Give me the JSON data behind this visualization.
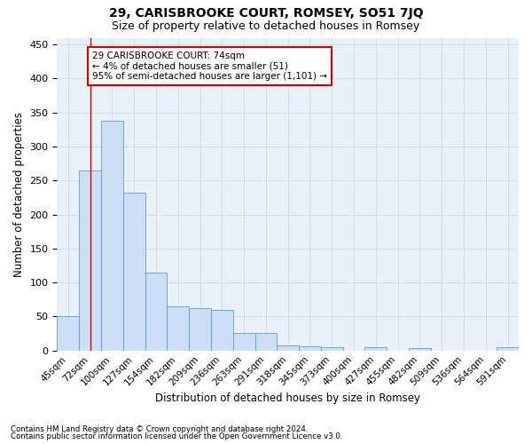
{
  "title": "29, CARISBROOKE COURT, ROMSEY, SO51 7JQ",
  "subtitle": "Size of property relative to detached houses in Romsey",
  "xlabel": "Distribution of detached houses by size in Romsey",
  "ylabel": "Number of detached properties",
  "categories": [
    "45sqm",
    "72sqm",
    "100sqm",
    "127sqm",
    "154sqm",
    "182sqm",
    "209sqm",
    "236sqm",
    "263sqm",
    "291sqm",
    "318sqm",
    "345sqm",
    "373sqm",
    "400sqm",
    "427sqm",
    "455sqm",
    "482sqm",
    "509sqm",
    "536sqm",
    "564sqm",
    "591sqm"
  ],
  "values": [
    50,
    265,
    338,
    232,
    115,
    65,
    62,
    60,
    26,
    26,
    7,
    6,
    5,
    0,
    5,
    0,
    3,
    0,
    0,
    0,
    5
  ],
  "bar_color": "#cce0f5",
  "bar_edge_color": "#6699cc",
  "bar_width": 1.0,
  "ylim": [
    0,
    460
  ],
  "yticks": [
    0,
    50,
    100,
    150,
    200,
    250,
    300,
    350,
    400,
    450
  ],
  "grid_color": "#d0dce8",
  "bg_color": "#e8f0f8",
  "vline_x": 1,
  "vline_color": "#cc0000",
  "annotation_text": "29 CARISBROOKE COURT: 74sqm\n← 4% of detached houses are smaller (51)\n95% of semi-detached houses are larger (1,101) →",
  "annotation_box_color": "white",
  "annotation_box_edge": "#cc0000",
  "footer1": "Contains HM Land Registry data © Crown copyright and database right 2024.",
  "footer2": "Contains public sector information licensed under the Open Government Licence v3.0."
}
